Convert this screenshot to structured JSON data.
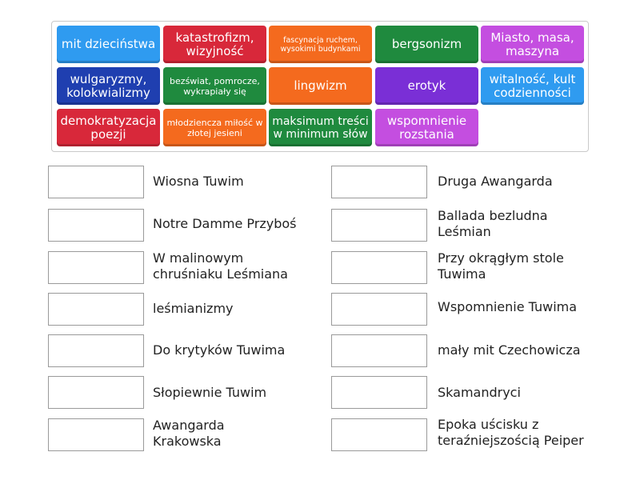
{
  "colors": {
    "blue": "#2f9bf0",
    "red": "#d8283a",
    "orange": "#f46a1e",
    "green": "#1f8a3e",
    "violet": "#c44ee0",
    "navy": "#1f3fb0",
    "purple": "#7a2fd6"
  },
  "tiles": [
    {
      "text": "mit dzieciństwa",
      "color": "#2f9bf0"
    },
    {
      "text": "katastrofizm, wizyjność",
      "color": "#d8283a"
    },
    {
      "text": "fascynacja ruchem, wysokimi budynkami",
      "color": "#f46a1e"
    },
    {
      "text": "bergsonizm",
      "color": "#1f8a3e"
    },
    {
      "text": "Miasto, masa, maszyna",
      "color": "#c44ee0"
    },
    {
      "text": "wulgaryzmy, kolokwializmy",
      "color": "#1f3fb0"
    },
    {
      "text": "bezświat, pomrocze, wykrapiały się",
      "color": "#1f8a3e"
    },
    {
      "text": "lingwizm",
      "color": "#f46a1e"
    },
    {
      "text": "erotyk",
      "color": "#7a2fd6"
    },
    {
      "text": "witalność, kult codzienności",
      "color": "#2f9bf0"
    },
    {
      "text": "demokratyzacja poezji",
      "color": "#d8283a"
    },
    {
      "text": "młodziencza miłość w złotej jesieni",
      "color": "#f46a1e"
    },
    {
      "text": "maksimum treści w minimum słów",
      "color": "#1f8a3e"
    },
    {
      "text": "wspomnienie rozstania",
      "color": "#c44ee0"
    }
  ],
  "left_items": [
    "Wiosna Tuwim",
    "Notre Damme Przyboś",
    "W malinowym chruśniaku Leśmiana",
    "leśmianizmy",
    "Do krytyków Tuwima",
    "Słopiewnie Tuwim",
    "Awangarda Krakowska"
  ],
  "right_items": [
    "Druga Awangarda",
    "Ballada bezludna Leśmian",
    "Przy okrągłym stole Tuwima",
    "Wspomnienie Tuwima",
    "mały mit Czechowicza",
    "Skamandryci",
    "Epoka uścisku z teraźniejszością Peiper"
  ]
}
